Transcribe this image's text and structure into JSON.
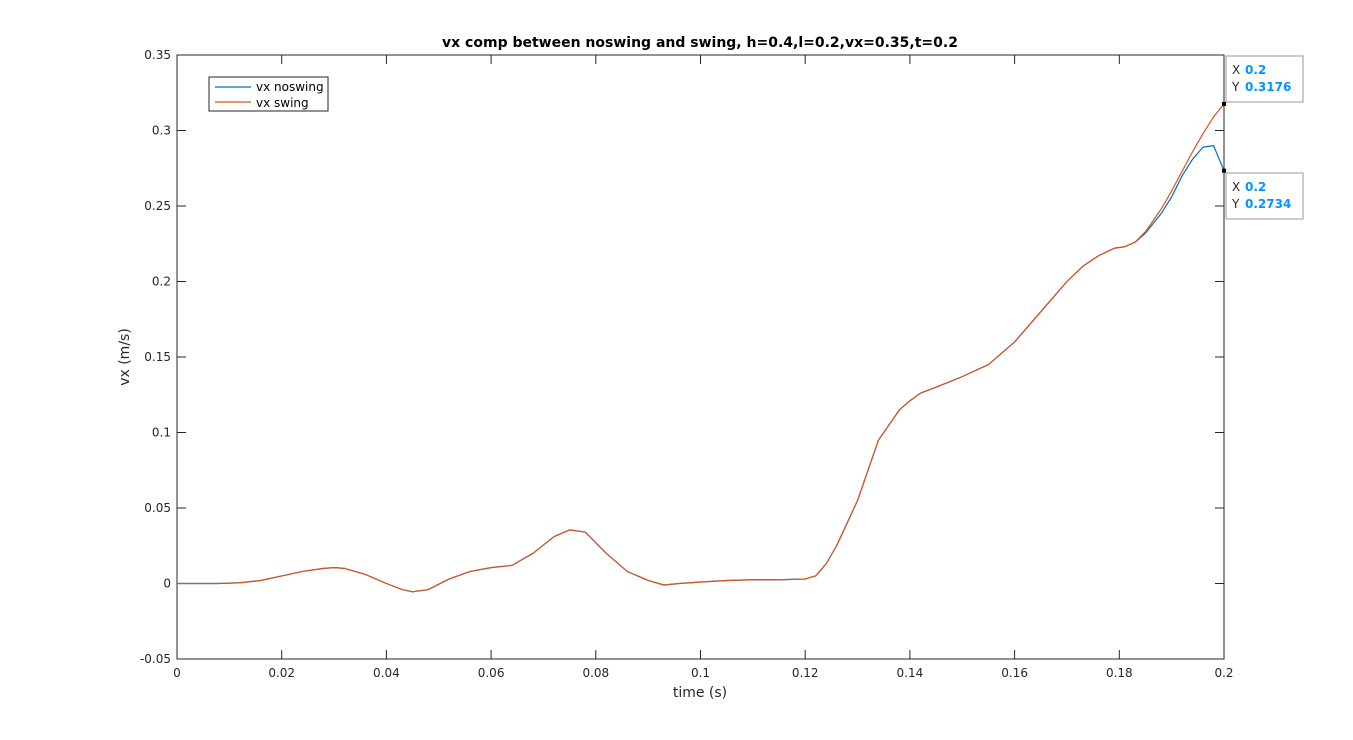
{
  "chart_data": {
    "type": "line",
    "title": "vx comp between noswing and swing, h=0.4,l=0.2,vx=0.35,t=0.2",
    "xlabel": "time (s)",
    "ylabel": "vx (m/s)",
    "xlim": [
      0,
      0.2
    ],
    "ylim": [
      -0.05,
      0.35
    ],
    "xticks": [
      0,
      0.02,
      0.04,
      0.06,
      0.08,
      0.1,
      0.12,
      0.14,
      0.16,
      0.18,
      0.2
    ],
    "xtick_labels": [
      "0",
      "0.02",
      "0.04",
      "0.06",
      "0.08",
      "0.1",
      "0.12",
      "0.14",
      "0.16",
      "0.18",
      "0.2"
    ],
    "yticks": [
      -0.05,
      0,
      0.05,
      0.1,
      0.15,
      0.2,
      0.25,
      0.3,
      0.35
    ],
    "ytick_labels": [
      "-0.05",
      "0",
      "0.05",
      "0.1",
      "0.15",
      "0.2",
      "0.25",
      "0.3",
      "0.35"
    ],
    "grid": false,
    "legend_position": "top-left",
    "series": [
      {
        "name": "vx noswing",
        "color": "#0072BD",
        "x": [
          0,
          0.004,
          0.008,
          0.012,
          0.016,
          0.02,
          0.024,
          0.028,
          0.03,
          0.032,
          0.036,
          0.04,
          0.043,
          0.045,
          0.048,
          0.052,
          0.056,
          0.06,
          0.064,
          0.068,
          0.072,
          0.075,
          0.078,
          0.082,
          0.086,
          0.09,
          0.093,
          0.096,
          0.1,
          0.105,
          0.11,
          0.115,
          0.12,
          0.122,
          0.124,
          0.126,
          0.128,
          0.13,
          0.132,
          0.134,
          0.136,
          0.138,
          0.14,
          0.142,
          0.145,
          0.15,
          0.155,
          0.16,
          0.165,
          0.17,
          0.173,
          0.176,
          0.179,
          0.181,
          0.183,
          0.185,
          0.188,
          0.19,
          0.192,
          0.194,
          0.196,
          0.198,
          0.2
        ],
        "y": [
          0,
          0,
          0,
          0.0005,
          0.002,
          0.005,
          0.008,
          0.01,
          0.0105,
          0.01,
          0.006,
          0,
          -0.004,
          -0.0055,
          -0.004,
          0.003,
          0.008,
          0.0105,
          0.012,
          0.02,
          0.031,
          0.0355,
          0.034,
          0.02,
          0.008,
          0.002,
          -0.001,
          0,
          0.001,
          0.002,
          0.0025,
          0.0025,
          0.003,
          0.005,
          0.013,
          0.025,
          0.04,
          0.055,
          0.075,
          0.095,
          0.105,
          0.115,
          0.121,
          0.126,
          0.13,
          0.137,
          0.145,
          0.16,
          0.18,
          0.2,
          0.21,
          0.217,
          0.222,
          0.223,
          0.226,
          0.232,
          0.245,
          0.256,
          0.27,
          0.281,
          0.289,
          0.29,
          0.2734
        ]
      },
      {
        "name": "vx swing",
        "color": "#D95319",
        "x": [
          0,
          0.004,
          0.008,
          0.012,
          0.016,
          0.02,
          0.024,
          0.028,
          0.03,
          0.032,
          0.036,
          0.04,
          0.043,
          0.045,
          0.048,
          0.052,
          0.056,
          0.06,
          0.064,
          0.068,
          0.072,
          0.075,
          0.078,
          0.082,
          0.086,
          0.09,
          0.093,
          0.096,
          0.1,
          0.105,
          0.11,
          0.115,
          0.12,
          0.122,
          0.124,
          0.126,
          0.128,
          0.13,
          0.132,
          0.134,
          0.136,
          0.138,
          0.14,
          0.142,
          0.145,
          0.15,
          0.155,
          0.16,
          0.165,
          0.17,
          0.173,
          0.176,
          0.179,
          0.181,
          0.183,
          0.185,
          0.188,
          0.19,
          0.192,
          0.194,
          0.196,
          0.198,
          0.2
        ],
        "y": [
          0,
          0,
          0,
          0.0005,
          0.002,
          0.005,
          0.008,
          0.01,
          0.0105,
          0.01,
          0.006,
          0,
          -0.004,
          -0.0055,
          -0.004,
          0.003,
          0.008,
          0.0105,
          0.012,
          0.02,
          0.031,
          0.0355,
          0.034,
          0.02,
          0.008,
          0.002,
          -0.001,
          0,
          0.001,
          0.002,
          0.0025,
          0.0025,
          0.003,
          0.005,
          0.013,
          0.025,
          0.04,
          0.055,
          0.075,
          0.095,
          0.105,
          0.115,
          0.121,
          0.126,
          0.13,
          0.137,
          0.145,
          0.16,
          0.18,
          0.2,
          0.21,
          0.217,
          0.222,
          0.223,
          0.226,
          0.233,
          0.248,
          0.26,
          0.273,
          0.286,
          0.298,
          0.309,
          0.3176
        ]
      }
    ],
    "annotations": [
      {
        "x": 0.2,
        "y": 0.3176,
        "x_label": "X",
        "x_value": "0.2",
        "y_label": "Y",
        "y_value": "0.3176"
      },
      {
        "x": 0.2,
        "y": 0.2734,
        "x_label": "X",
        "x_value": "0.2",
        "y_label": "Y",
        "y_value": "0.2734"
      }
    ],
    "datatip_value_color": "#0095FF"
  }
}
